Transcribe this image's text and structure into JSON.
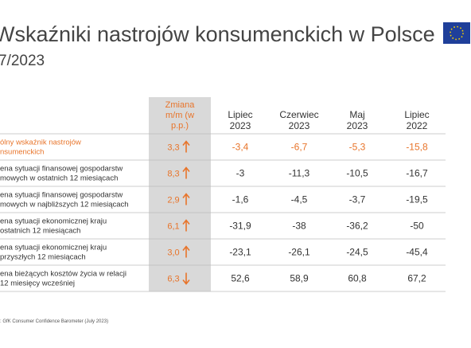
{
  "header": {
    "title": "Wskaźniki nastrojów konsumenckich w Polsce",
    "subtitle": "7/2023"
  },
  "table": {
    "change_header": [
      "Zmiana",
      "m/m (w",
      "p.p.)"
    ],
    "columns": [
      [
        "Lipiec",
        "2023"
      ],
      [
        "Czerwiec",
        "2023"
      ],
      [
        "Maj",
        "2023"
      ],
      [
        "Lipiec",
        "2022"
      ]
    ],
    "rows": [
      {
        "label": [
          "ólny wskaźnik nastrojów",
          "nsumenckich"
        ],
        "change": "3,3",
        "direction": "up",
        "highlight": true,
        "values": [
          "-3,4",
          "-6,7",
          "-5,3",
          "-15,8"
        ]
      },
      {
        "label": [
          "ena sytuacji finansowej gospodarstw",
          "mowych w ostatnich 12 miesiącach"
        ],
        "change": "8,3",
        "direction": "up",
        "highlight": false,
        "values": [
          "-3",
          "-11,3",
          "-10,5",
          "-16,7"
        ]
      },
      {
        "label": [
          "ena sytuacji finansowej gospodarstw",
          "mowych w najbliższych 12 miesiącach"
        ],
        "change": "2,9",
        "direction": "up",
        "highlight": false,
        "values": [
          "-1,6",
          "-4,5",
          "-3,7",
          "-19,5"
        ]
      },
      {
        "label": [
          "ena sytuacji ekonomicznej kraju",
          "ostatnich 12 miesiącach"
        ],
        "change": "6,1",
        "direction": "up",
        "highlight": false,
        "values": [
          "-31,9",
          "-38",
          "-36,2",
          "-50"
        ]
      },
      {
        "label": [
          "ena sytuacji ekonomicznej kraju",
          "przyszłych 12 miesiącach"
        ],
        "change": "3,0",
        "direction": "up",
        "highlight": false,
        "values": [
          "-23,1",
          "-26,1",
          "-24,5",
          "-45,4"
        ]
      },
      {
        "label": [
          "ena bieżących kosztów życia w relacji",
          "12 miesięcy wcześniej"
        ],
        "change": "6,3",
        "direction": "down",
        "highlight": false,
        "values": [
          "52,6",
          "58,9",
          "60,8",
          "67,2"
        ]
      }
    ]
  },
  "footer": {
    "source": ": GfK Consumer Confidence Barometer (July 2023)"
  }
}
